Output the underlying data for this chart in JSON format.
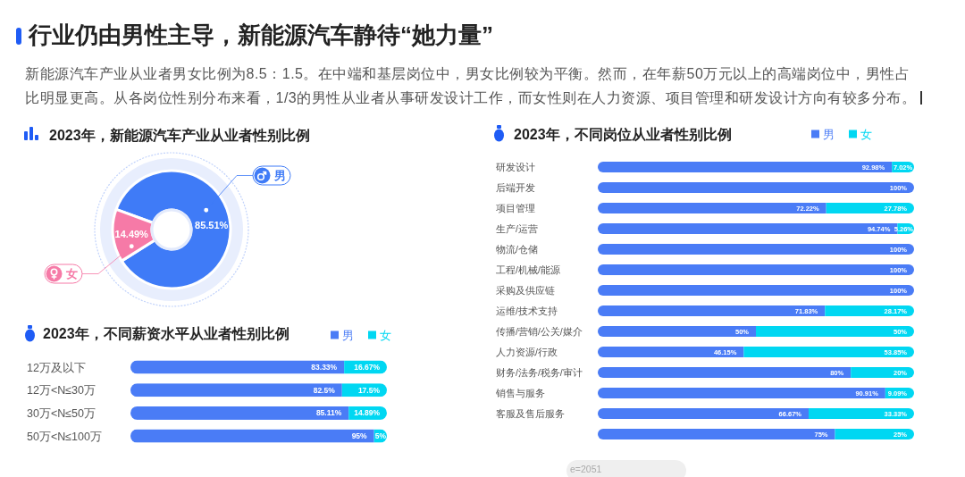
{
  "chart_data": [
    {
      "type": "other",
      "title": "行业仍由男性主导，新能源汽车静待“她力量”",
      "subtitle": "新能源汽车产业从业者男女比例为8.5：1.5。在中端和基层岗位中，男女比例较为平衡。然而，在年薪50万元以上的高端岗位中，男性占比明显更高。从各岗位性别分布来看，1/3的男性从业者从事研发设计工作，而女性则在人力资源、项目管理和研发设计方向有较多分布。"
    },
    {
      "type": "donut",
      "title": "2023年，新能源汽车产业从业者性别比例",
      "categories": [
        "男",
        "女"
      ],
      "values": [
        85.51,
        14.49
      ],
      "colors": [
        "#3f7bf7",
        "#f67aa7"
      ],
      "value_labels": [
        "85.51%",
        "14.49%"
      ],
      "legend": "left"
    },
    {
      "type": "bar",
      "orientation": "horizontal",
      "stacked": true,
      "title": "2023年，不同薪资水平从业者性别比例",
      "categories": [
        "12万及以下",
        "12万<N≤30万",
        "30万<N≤50万",
        "50万<N≤100万"
      ],
      "series": [
        {
          "name": "男",
          "color": "#4a7cf6",
          "values": [
            83.33,
            82.5,
            85.11,
            95
          ],
          "value_labels": [
            "83.33%",
            "82.5%",
            "85.11%",
            "95%"
          ]
        },
        {
          "name": "女",
          "color": "#00d7f2",
          "values": [
            16.67,
            17.5,
            14.89,
            5
          ],
          "value_labels": [
            "16.67%",
            "17.5%",
            "14.89%",
            "5%"
          ]
        }
      ],
      "xlim": [
        0,
        100
      ],
      "tick_labels": "y",
      "legend": "top right"
    },
    {
      "type": "bar",
      "orientation": "horizontal",
      "stacked": true,
      "title": "2023年，不同岗位从业者性别比例",
      "categories": [
        "研发设计",
        "后端开发",
        "项目管理",
        "生产/运营",
        "物流/仓储",
        "工程/机械/能源",
        "采购及供应链",
        "运维/技术支持",
        "传播/营销/公关/媒介",
        "人力资源/行政",
        "财务/法务/税务/审计",
        "销售与服务",
        "客服及售后服务",
        null
      ],
      "series": [
        {
          "name": "男",
          "color": "#4a7cf6",
          "values": [
            92.98,
            100,
            72.22,
            94.74,
            100,
            100,
            100,
            71.83,
            50,
            46.15,
            80,
            90.91,
            66.67,
            75
          ],
          "value_labels": [
            "92.98%",
            "100%",
            "72.22%",
            "94.74%",
            "100%",
            "100%",
            "100%",
            "71.83%",
            "50%",
            "46.15%",
            "80%",
            "90.91%",
            "66.67%",
            "75%"
          ]
        },
        {
          "name": "女",
          "color": "#00d7f2",
          "values": [
            7.02,
            0,
            27.78,
            5.26,
            0,
            0,
            0,
            28.17,
            50,
            53.85,
            20,
            9.09,
            33.33,
            25
          ],
          "value_labels": [
            "7.02%",
            null,
            "27.78%",
            "5.26%",
            null,
            null,
            null,
            "28.17%",
            "50%",
            "53.85%",
            "20%",
            "9.09%",
            "33.33%",
            "25%"
          ]
        }
      ],
      "xlim": [
        0,
        100
      ],
      "tick_labels": "y",
      "legend": "top right",
      "annotations": [
        "e=2051"
      ]
    }
  ]
}
